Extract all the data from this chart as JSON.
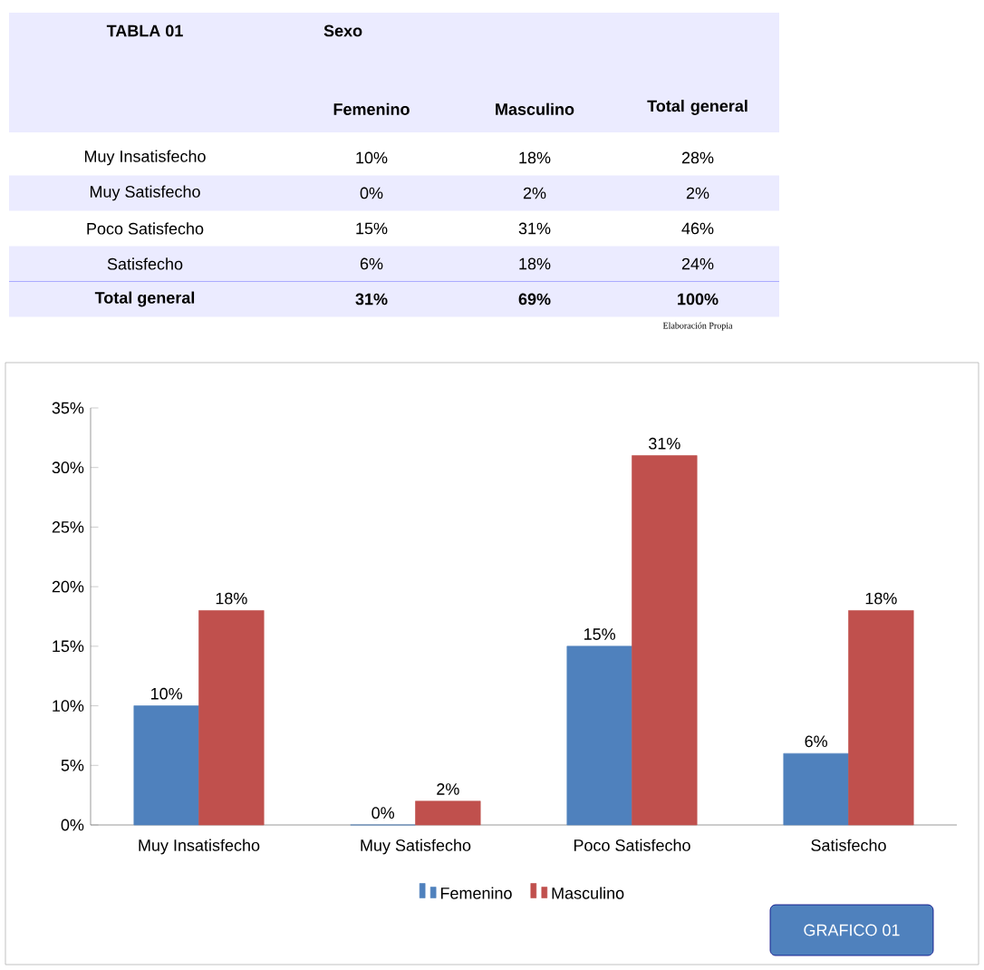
{
  "chart_data": [
    {
      "type": "other",
      "title": "TABLA 01",
      "xlabel": "Sexo",
      "categories": [
        "Femenino",
        "Masculino",
        "Total general"
      ],
      "y_categories": [
        "Muy Insatisfecho",
        "Muy Satisfecho",
        "Poco Satisfecho",
        "Satisfecho",
        "Total general"
      ],
      "cell_labels": [
        [
          "10%",
          "18%",
          "28%"
        ],
        [
          "0%",
          "2%",
          "2%"
        ],
        [
          "15%",
          "31%",
          "46%"
        ],
        [
          "6%",
          "18%",
          "24%"
        ],
        [
          "31%",
          "69%",
          "100%"
        ]
      ],
      "annotations": [
        "Elaboración Propia"
      ]
    },
    {
      "type": "bar",
      "categories": [
        "Muy Insatisfecho",
        "Muy Satisfecho",
        "Poco Satisfecho",
        "Satisfecho"
      ],
      "series": [
        {
          "name": "Femenino",
          "color": "#4f81bd",
          "values": [
            10,
            0,
            15,
            6
          ],
          "value_labels": [
            "10%",
            "0%",
            "15%",
            "6%"
          ]
        },
        {
          "name": "Masculino",
          "color": "#c0504d",
          "values": [
            18,
            2,
            31,
            18
          ],
          "value_labels": [
            "18%",
            "2%",
            "31%",
            "18%"
          ]
        }
      ],
      "ylim": [
        0,
        35
      ],
      "yticks": [
        {
          "value": 0,
          "label": "0%"
        },
        {
          "value": 5,
          "label": "5%"
        },
        {
          "value": 10,
          "label": "10%"
        },
        {
          "value": 15,
          "label": "15%"
        },
        {
          "value": 20,
          "label": "20%"
        },
        {
          "value": 25,
          "label": "25%"
        },
        {
          "value": 30,
          "label": "30%"
        },
        {
          "value": 35,
          "label": "35%"
        }
      ],
      "legend": "bottom",
      "grid": false,
      "annotations": [
        "GRAFICO 01"
      ]
    }
  ]
}
